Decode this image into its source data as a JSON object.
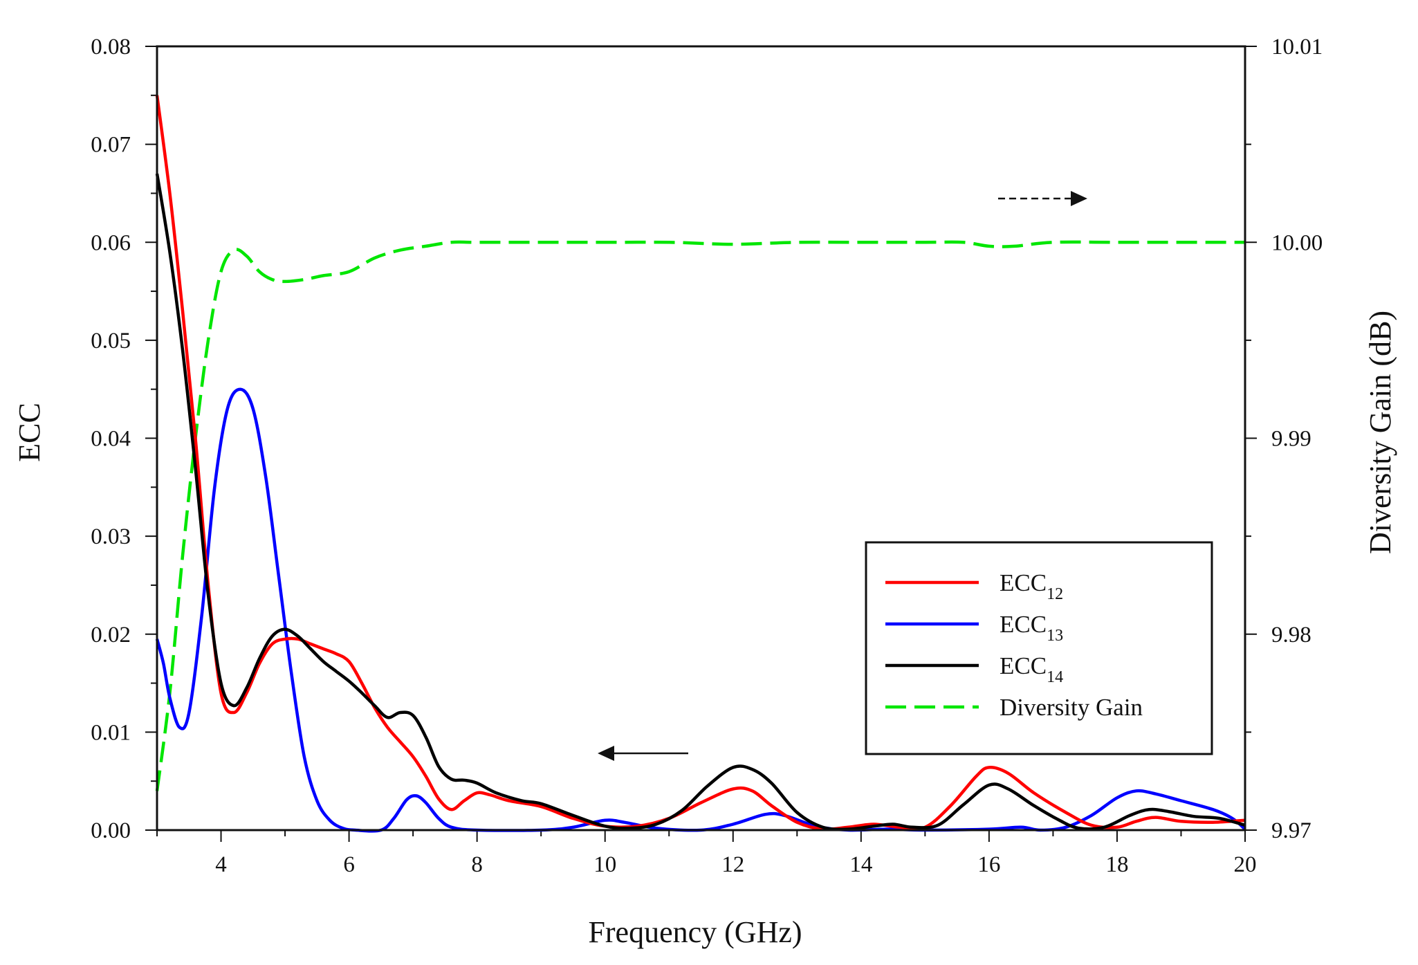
{
  "chart_data": {
    "type": "line",
    "xlabel": "Frequency (GHz)",
    "ylabel": "ECC",
    "y2label": "Diversity Gain (dB)",
    "xlim": [
      3,
      20
    ],
    "ylim": [
      0,
      0.08
    ],
    "y2lim": [
      9.97,
      10.01
    ],
    "x_ticks": [
      4,
      6,
      8,
      10,
      12,
      14,
      16,
      18,
      20
    ],
    "x_tick_labels": [
      "4",
      "6",
      "8",
      "10",
      "12",
      "14",
      "16",
      "18",
      "20"
    ],
    "y_ticks": [
      0,
      0.01,
      0.02,
      0.03,
      0.04,
      0.05,
      0.06,
      0.07,
      0.08
    ],
    "y_tick_labels": [
      "0.00",
      "0.01",
      "0.02",
      "0.03",
      "0.04",
      "0.05",
      "0.06",
      "0.07",
      "0.08"
    ],
    "y2_ticks": [
      9.97,
      9.98,
      9.99,
      10.0,
      10.01
    ],
    "y2_tick_labels": [
      "9.97",
      "9.98",
      "9.99",
      "10.00",
      "10.01"
    ],
    "legend_position": "lower-right",
    "series": [
      {
        "name": "ECC",
        "subscript": "12",
        "axis": "left",
        "color": "#ff0000",
        "dash": false,
        "points": [
          [
            3.0,
            0.075
          ],
          [
            3.2,
            0.065
          ],
          [
            3.4,
            0.053
          ],
          [
            3.6,
            0.04
          ],
          [
            3.8,
            0.025
          ],
          [
            4.0,
            0.014
          ],
          [
            4.2,
            0.012
          ],
          [
            4.4,
            0.014
          ],
          [
            4.6,
            0.017
          ],
          [
            4.8,
            0.019
          ],
          [
            5.0,
            0.0195
          ],
          [
            5.2,
            0.0195
          ],
          [
            5.4,
            0.019
          ],
          [
            5.6,
            0.0185
          ],
          [
            5.8,
            0.018
          ],
          [
            6.0,
            0.0172
          ],
          [
            6.2,
            0.015
          ],
          [
            6.4,
            0.0125
          ],
          [
            6.6,
            0.0105
          ],
          [
            6.8,
            0.009
          ],
          [
            7.0,
            0.0075
          ],
          [
            7.2,
            0.0055
          ],
          [
            7.4,
            0.0032
          ],
          [
            7.6,
            0.0021
          ],
          [
            7.8,
            0.003
          ],
          [
            8.0,
            0.0038
          ],
          [
            8.2,
            0.0036
          ],
          [
            8.5,
            0.003
          ],
          [
            9.0,
            0.0024
          ],
          [
            9.5,
            0.0012
          ],
          [
            10.0,
            0.0004
          ],
          [
            10.5,
            0.0004
          ],
          [
            11.0,
            0.0012
          ],
          [
            11.5,
            0.0028
          ],
          [
            12.0,
            0.0042
          ],
          [
            12.3,
            0.004
          ],
          [
            12.6,
            0.0025
          ],
          [
            13.0,
            0.0008
          ],
          [
            13.4,
            0.0001
          ],
          [
            13.8,
            0.0003
          ],
          [
            14.2,
            0.0006
          ],
          [
            14.6,
            0.0003
          ],
          [
            15.0,
            0.0003
          ],
          [
            15.4,
            0.0025
          ],
          [
            15.8,
            0.0055
          ],
          [
            16.0,
            0.0064
          ],
          [
            16.3,
            0.0058
          ],
          [
            16.7,
            0.0038
          ],
          [
            17.2,
            0.0018
          ],
          [
            17.6,
            0.0005
          ],
          [
            18.0,
            0.0003
          ],
          [
            18.3,
            0.0009
          ],
          [
            18.6,
            0.0013
          ],
          [
            19.0,
            0.0009
          ],
          [
            19.5,
            0.0008
          ],
          [
            20.0,
            0.001
          ]
        ]
      },
      {
        "name": "ECC",
        "subscript": "13",
        "axis": "left",
        "color": "#0000ff",
        "dash": false,
        "points": [
          [
            3.0,
            0.0195
          ],
          [
            3.1,
            0.017
          ],
          [
            3.2,
            0.0135
          ],
          [
            3.35,
            0.0105
          ],
          [
            3.5,
            0.012
          ],
          [
            3.7,
            0.022
          ],
          [
            3.9,
            0.035
          ],
          [
            4.1,
            0.043
          ],
          [
            4.3,
            0.045
          ],
          [
            4.5,
            0.043
          ],
          [
            4.7,
            0.036
          ],
          [
            4.9,
            0.026
          ],
          [
            5.1,
            0.016
          ],
          [
            5.3,
            0.0075
          ],
          [
            5.5,
            0.003
          ],
          [
            5.7,
            0.001
          ],
          [
            5.9,
            0.0002
          ],
          [
            6.1,
            0.0
          ],
          [
            6.5,
            0.0
          ],
          [
            6.7,
            0.0012
          ],
          [
            6.9,
            0.0031
          ],
          [
            7.05,
            0.0035
          ],
          [
            7.2,
            0.0028
          ],
          [
            7.4,
            0.0012
          ],
          [
            7.6,
            0.0003
          ],
          [
            8.0,
            0.0
          ],
          [
            9.0,
            0.0
          ],
          [
            9.5,
            0.0003
          ],
          [
            10.0,
            0.001
          ],
          [
            10.3,
            0.0008
          ],
          [
            10.8,
            0.0002
          ],
          [
            11.5,
            0.0
          ],
          [
            12.0,
            0.0006
          ],
          [
            12.5,
            0.0016
          ],
          [
            12.8,
            0.0015
          ],
          [
            13.3,
            0.0004
          ],
          [
            13.8,
            0.0
          ],
          [
            14.4,
            0.0001
          ],
          [
            15.0,
            0.0
          ],
          [
            16.0,
            0.0001
          ],
          [
            16.5,
            0.0003
          ],
          [
            16.8,
            0.0
          ],
          [
            17.2,
            0.0003
          ],
          [
            17.6,
            0.0015
          ],
          [
            18.0,
            0.0033
          ],
          [
            18.3,
            0.004
          ],
          [
            18.6,
            0.0037
          ],
          [
            19.0,
            0.003
          ],
          [
            19.5,
            0.0021
          ],
          [
            19.8,
            0.0012
          ],
          [
            20.0,
            0.0001
          ]
        ]
      },
      {
        "name": "ECC",
        "subscript": "14",
        "axis": "left",
        "color": "#000000",
        "dash": false,
        "points": [
          [
            3.0,
            0.067
          ],
          [
            3.2,
            0.059
          ],
          [
            3.4,
            0.049
          ],
          [
            3.6,
            0.037
          ],
          [
            3.8,
            0.024
          ],
          [
            4.0,
            0.015
          ],
          [
            4.2,
            0.0127
          ],
          [
            4.4,
            0.0145
          ],
          [
            4.6,
            0.0175
          ],
          [
            4.8,
            0.0198
          ],
          [
            5.0,
            0.0205
          ],
          [
            5.2,
            0.0198
          ],
          [
            5.4,
            0.0185
          ],
          [
            5.6,
            0.0172
          ],
          [
            5.8,
            0.0162
          ],
          [
            6.0,
            0.0152
          ],
          [
            6.2,
            0.014
          ],
          [
            6.4,
            0.0127
          ],
          [
            6.6,
            0.0115
          ],
          [
            6.8,
            0.012
          ],
          [
            7.0,
            0.0117
          ],
          [
            7.2,
            0.0095
          ],
          [
            7.4,
            0.0065
          ],
          [
            7.6,
            0.0052
          ],
          [
            7.8,
            0.0051
          ],
          [
            8.0,
            0.0048
          ],
          [
            8.3,
            0.0038
          ],
          [
            8.7,
            0.003
          ],
          [
            9.0,
            0.0027
          ],
          [
            9.5,
            0.0015
          ],
          [
            10.0,
            0.0004
          ],
          [
            10.4,
            0.0002
          ],
          [
            10.8,
            0.0006
          ],
          [
            11.2,
            0.002
          ],
          [
            11.6,
            0.0045
          ],
          [
            12.0,
            0.0064
          ],
          [
            12.3,
            0.0062
          ],
          [
            12.6,
            0.0048
          ],
          [
            13.0,
            0.0018
          ],
          [
            13.4,
            0.0003
          ],
          [
            13.8,
            0.0001
          ],
          [
            14.2,
            0.0004
          ],
          [
            14.5,
            0.0006
          ],
          [
            14.8,
            0.0003
          ],
          [
            15.2,
            0.0005
          ],
          [
            15.6,
            0.0026
          ],
          [
            16.0,
            0.0046
          ],
          [
            16.3,
            0.0042
          ],
          [
            16.7,
            0.0025
          ],
          [
            17.1,
            0.001
          ],
          [
            17.4,
            0.0002
          ],
          [
            17.8,
            0.0003
          ],
          [
            18.2,
            0.0015
          ],
          [
            18.5,
            0.0021
          ],
          [
            18.8,
            0.0019
          ],
          [
            19.2,
            0.0014
          ],
          [
            19.6,
            0.0012
          ],
          [
            20.0,
            0.0005
          ]
        ]
      },
      {
        "name": "Diversity Gain",
        "subscript": "",
        "axis": "right",
        "color": "#00e600",
        "dash": true,
        "points": [
          [
            3.0,
            9.972
          ],
          [
            3.2,
            9.977
          ],
          [
            3.4,
            9.984
          ],
          [
            3.6,
            9.99
          ],
          [
            3.8,
            9.995
          ],
          [
            4.0,
            9.9985
          ],
          [
            4.2,
            9.9996
          ],
          [
            4.4,
            9.9993
          ],
          [
            4.6,
            9.9985
          ],
          [
            4.8,
            9.9981
          ],
          [
            5.0,
            9.998
          ],
          [
            5.3,
            9.9981
          ],
          [
            5.6,
            9.9983
          ],
          [
            6.0,
            9.9985
          ],
          [
            6.4,
            9.9992
          ],
          [
            6.8,
            9.9996
          ],
          [
            7.2,
            9.9998
          ],
          [
            7.6,
            10.0
          ],
          [
            8.0,
            10.0
          ],
          [
            9.0,
            10.0
          ],
          [
            10.0,
            10.0
          ],
          [
            11.0,
            10.0
          ],
          [
            12.0,
            9.9999
          ],
          [
            13.0,
            10.0
          ],
          [
            14.0,
            10.0
          ],
          [
            15.0,
            10.0
          ],
          [
            15.6,
            10.0
          ],
          [
            16.0,
            9.9998
          ],
          [
            16.4,
            9.9998
          ],
          [
            17.0,
            10.0
          ],
          [
            18.0,
            10.0
          ],
          [
            19.0,
            10.0
          ],
          [
            20.0,
            10.0
          ]
        ]
      }
    ]
  }
}
